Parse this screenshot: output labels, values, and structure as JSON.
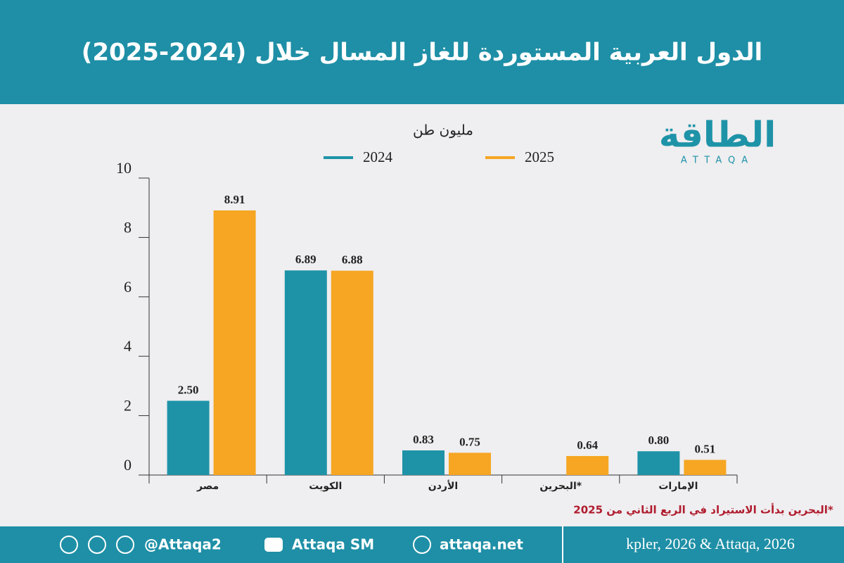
{
  "header": {
    "title": "الدول العربية المستوردة للغاز المسال خلال (2024-2025)"
  },
  "logo": {
    "name": "الطاقة",
    "latin": "ATTAQA"
  },
  "chart_data": {
    "type": "bar",
    "unit": "مليون طن",
    "categories": [
      "مصر",
      "الكويت",
      "الأردن",
      "البحرين*",
      "الإمارات"
    ],
    "series": [
      {
        "name": "2024",
        "color": "#1e93a8",
        "values": [
          2.5,
          6.89,
          0.83,
          null,
          0.8
        ],
        "value_labels": [
          "2.50",
          "6.89",
          "0.83",
          null,
          "0.80"
        ]
      },
      {
        "name": "2025",
        "color": "#f6a623",
        "values": [
          8.91,
          6.88,
          0.75,
          0.64,
          0.51
        ],
        "value_labels": [
          "8.91",
          "6.88",
          "0.75",
          "0.64",
          "0.51"
        ]
      }
    ],
    "ylim": [
      0,
      10
    ],
    "yticks": [
      0,
      2,
      4,
      6,
      8,
      10
    ],
    "note": "*البحرين بدأت الاستيراد في الربع الثاني من 2025"
  },
  "footer": {
    "social": "@Attaqa2",
    "youtube": "Attaqa SM",
    "website": "attaqa.net",
    "source": "kpler, 2026 & Attaqa, 2026"
  }
}
